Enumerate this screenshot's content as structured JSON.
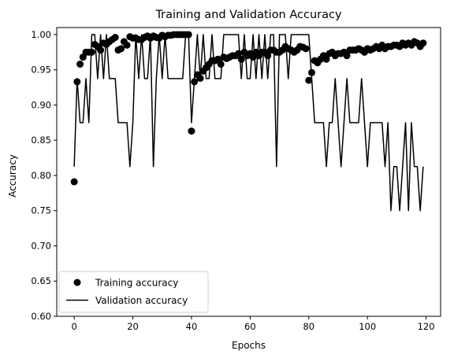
{
  "chart_data": {
    "type": "scatter+line",
    "title": "Training and Validation Accuracy",
    "xlabel": "Epochs",
    "ylabel": "Accuracy",
    "xlim": [
      -5.95,
      124.95
    ],
    "ylim": [
      0.6,
      1.01
    ],
    "xticks": [
      "0",
      "20",
      "40",
      "60",
      "80",
      "100",
      "120"
    ],
    "yticks": [
      "0.60",
      "0.65",
      "0.70",
      "0.75",
      "0.80",
      "0.85",
      "0.90",
      "0.95",
      "1.00"
    ],
    "legend_position": "lower-left",
    "grid": false,
    "series": [
      {
        "name": "Training accuracy",
        "kind": "scatter",
        "color": "#000000",
        "x": [
          0,
          1,
          2,
          3,
          4,
          5,
          6,
          7,
          8,
          9,
          10,
          11,
          12,
          13,
          14,
          15,
          16,
          17,
          18,
          19,
          20,
          21,
          22,
          23,
          24,
          25,
          26,
          27,
          28,
          29,
          30,
          31,
          32,
          33,
          34,
          35,
          36,
          37,
          38,
          39,
          40,
          41,
          42,
          43,
          44,
          45,
          46,
          47,
          48,
          49,
          50,
          51,
          52,
          53,
          54,
          55,
          56,
          57,
          58,
          59,
          60,
          61,
          62,
          63,
          64,
          65,
          66,
          67,
          68,
          69,
          70,
          71,
          72,
          73,
          74,
          75,
          76,
          77,
          78,
          79,
          80,
          81,
          82,
          83,
          84,
          85,
          86,
          87,
          88,
          89,
          90,
          91,
          92,
          93,
          94,
          95,
          96,
          97,
          98,
          99,
          100,
          101,
          102,
          103,
          104,
          105,
          106,
          107,
          108,
          109,
          110,
          111,
          112,
          113,
          114,
          115,
          116,
          117,
          118,
          119
        ],
        "y": [
          0.791,
          0.933,
          0.958,
          0.968,
          0.975,
          0.975,
          0.975,
          0.986,
          0.983,
          0.978,
          0.988,
          0.986,
          0.99,
          0.993,
          0.996,
          0.978,
          0.98,
          0.99,
          0.985,
          0.997,
          0.995,
          0.995,
          0.993,
          0.993,
          0.996,
          0.998,
          0.995,
          0.998,
          0.996,
          0.995,
          0.999,
          0.997,
          0.999,
          0.999,
          1.0,
          1.0,
          1.0,
          1.0,
          1.0,
          1.0,
          0.863,
          0.933,
          0.943,
          0.938,
          0.948,
          0.953,
          0.958,
          0.963,
          0.963,
          0.965,
          0.958,
          0.968,
          0.966,
          0.968,
          0.97,
          0.97,
          0.973,
          0.965,
          0.975,
          0.97,
          0.973,
          0.968,
          0.975,
          0.97,
          0.975,
          0.975,
          0.97,
          0.978,
          0.978,
          0.975,
          0.975,
          0.978,
          0.983,
          0.98,
          0.978,
          0.975,
          0.978,
          0.983,
          0.982,
          0.98,
          0.935,
          0.946,
          0.963,
          0.96,
          0.965,
          0.97,
          0.965,
          0.973,
          0.975,
          0.97,
          0.973,
          0.973,
          0.975,
          0.97,
          0.978,
          0.978,
          0.978,
          0.98,
          0.978,
          0.975,
          0.98,
          0.978,
          0.98,
          0.983,
          0.98,
          0.985,
          0.98,
          0.983,
          0.983,
          0.985,
          0.985,
          0.983,
          0.988,
          0.985,
          0.988,
          0.985,
          0.99,
          0.988,
          0.983,
          0.988
        ]
      },
      {
        "name": "Validation accuracy",
        "kind": "line",
        "color": "#000000",
        "x": [
          0,
          1,
          2,
          3,
          4,
          5,
          6,
          7,
          8,
          9,
          10,
          11,
          12,
          13,
          14,
          15,
          16,
          17,
          18,
          19,
          20,
          21,
          22,
          23,
          24,
          25,
          26,
          27,
          28,
          29,
          30,
          31,
          32,
          33,
          34,
          35,
          36,
          37,
          38,
          39,
          40,
          41,
          42,
          43,
          44,
          45,
          46,
          47,
          48,
          49,
          50,
          51,
          52,
          53,
          54,
          55,
          56,
          57,
          58,
          59,
          60,
          61,
          62,
          63,
          64,
          65,
          66,
          67,
          68,
          69,
          70,
          71,
          72,
          73,
          74,
          75,
          76,
          77,
          78,
          79,
          80,
          81,
          82,
          83,
          84,
          85,
          86,
          87,
          88,
          89,
          90,
          91,
          92,
          93,
          94,
          95,
          96,
          97,
          98,
          99,
          100,
          101,
          102,
          103,
          104,
          105,
          106,
          107,
          108,
          109,
          110,
          111,
          112,
          113,
          114,
          115,
          116,
          117,
          118,
          119
        ],
        "y": [
          0.8125,
          0.9375,
          0.875,
          0.875,
          0.9375,
          0.875,
          1.0,
          1.0,
          0.9375,
          1.0,
          0.9375,
          1.0,
          0.9375,
          0.9375,
          0.9375,
          0.875,
          0.875,
          0.875,
          0.875,
          0.8125,
          0.875,
          1.0,
          0.9375,
          1.0,
          0.9375,
          0.9375,
          1.0,
          0.8125,
          0.9375,
          1.0,
          0.9375,
          1.0,
          0.9375,
          0.9375,
          0.9375,
          0.9375,
          0.9375,
          0.9375,
          1.0,
          1.0,
          0.875,
          0.9375,
          1.0,
          0.9375,
          1.0,
          0.9375,
          0.9375,
          1.0,
          0.9375,
          0.9375,
          0.9375,
          1.0,
          1.0,
          1.0,
          1.0,
          1.0,
          1.0,
          0.9375,
          1.0,
          0.9375,
          0.9375,
          1.0,
          0.9375,
          1.0,
          0.9375,
          1.0,
          0.9375,
          1.0,
          1.0,
          0.8125,
          1.0,
          1.0,
          1.0,
          0.9375,
          1.0,
          1.0,
          1.0,
          1.0,
          1.0,
          1.0,
          1.0,
          0.9375,
          0.875,
          0.875,
          0.875,
          0.875,
          0.8125,
          0.875,
          0.875,
          0.9375,
          0.875,
          0.8125,
          0.875,
          0.9375,
          0.875,
          0.875,
          0.875,
          0.875,
          0.9375,
          0.875,
          0.8125,
          0.875,
          0.875,
          0.875,
          0.875,
          0.875,
          0.8125,
          0.875,
          0.75,
          0.8125,
          0.8125,
          0.75,
          0.8125,
          0.875,
          0.75,
          0.875,
          0.8125,
          0.8125,
          0.75,
          0.8125
        ]
      }
    ]
  }
}
